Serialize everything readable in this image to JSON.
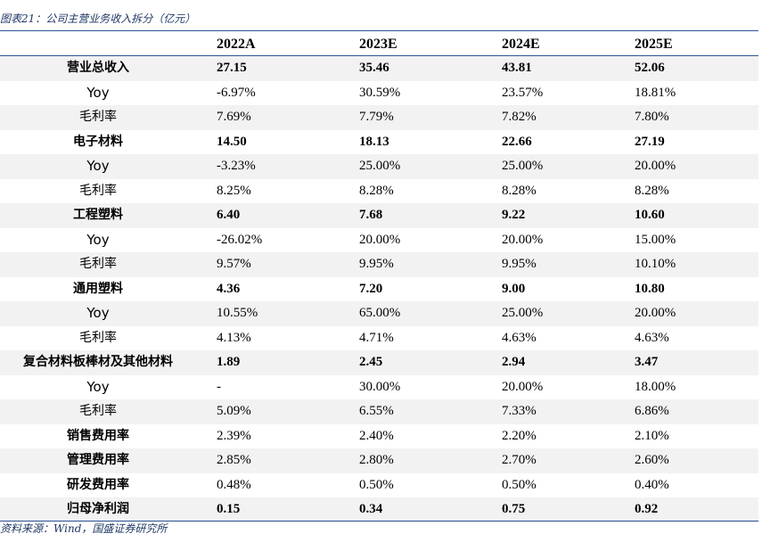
{
  "caption": "图表21：公司主营业务收入拆分（亿元）",
  "table": {
    "columns": [
      "2022A",
      "2023E",
      "2024E",
      "2025E"
    ],
    "rows": [
      {
        "label": "营业总收入",
        "bold": true,
        "cells": [
          "27.15",
          "35.46",
          "43.81",
          "52.06"
        ]
      },
      {
        "label": "Yoy",
        "bold": false,
        "cells": [
          "-6.97%",
          "30.59%",
          "23.57%",
          "18.81%"
        ]
      },
      {
        "label": "毛利率",
        "bold": false,
        "cells": [
          "7.69%",
          "7.79%",
          "7.82%",
          "7.80%"
        ]
      },
      {
        "label": "电子材料",
        "bold": true,
        "cells": [
          "14.50",
          "18.13",
          "22.66",
          "27.19"
        ]
      },
      {
        "label": "Yoy",
        "bold": false,
        "cells": [
          "-3.23%",
          "25.00%",
          "25.00%",
          "20.00%"
        ]
      },
      {
        "label": "毛利率",
        "bold": false,
        "cells": [
          "8.25%",
          "8.28%",
          "8.28%",
          "8.28%"
        ]
      },
      {
        "label": "工程塑料",
        "bold": true,
        "cells": [
          "6.40",
          "7.68",
          "9.22",
          "10.60"
        ]
      },
      {
        "label": "Yoy",
        "bold": false,
        "cells": [
          "-26.02%",
          "20.00%",
          "20.00%",
          "15.00%"
        ]
      },
      {
        "label": "毛利率",
        "bold": false,
        "cells": [
          "9.57%",
          "9.95%",
          "9.95%",
          "10.10%"
        ]
      },
      {
        "label": "通用塑料",
        "bold": true,
        "cells": [
          "4.36",
          "7.20",
          "9.00",
          "10.80"
        ]
      },
      {
        "label": "Yoy",
        "bold": false,
        "cells": [
          "10.55%",
          "65.00%",
          "25.00%",
          "20.00%"
        ]
      },
      {
        "label": "毛利率",
        "bold": false,
        "cells": [
          "4.13%",
          "4.71%",
          "4.63%",
          "4.63%"
        ]
      },
      {
        "label": "复合材料板棒材及其他材料",
        "bold": true,
        "cells": [
          "1.89",
          "2.45",
          "2.94",
          "3.47"
        ]
      },
      {
        "label": "Yoy",
        "bold": false,
        "cells": [
          "-",
          "30.00%",
          "20.00%",
          "18.00%"
        ]
      },
      {
        "label": "毛利率",
        "bold": false,
        "cells": [
          "5.09%",
          "6.55%",
          "7.33%",
          "6.86%"
        ]
      },
      {
        "label": "销售费用率",
        "bold": "label",
        "cells": [
          "2.39%",
          "2.40%",
          "2.20%",
          "2.10%"
        ]
      },
      {
        "label": "管理费用率",
        "bold": "label",
        "cells": [
          "2.85%",
          "2.80%",
          "2.70%",
          "2.60%"
        ]
      },
      {
        "label": "研发费用率",
        "bold": "label",
        "cells": [
          "0.48%",
          "0.50%",
          "0.50%",
          "0.40%"
        ]
      },
      {
        "label": "归母净利润",
        "bold": true,
        "cells": [
          "0.15",
          "0.34",
          "0.75",
          "0.92"
        ]
      }
    ]
  },
  "source": "资料来源：Wind，国盛证券研究所"
}
